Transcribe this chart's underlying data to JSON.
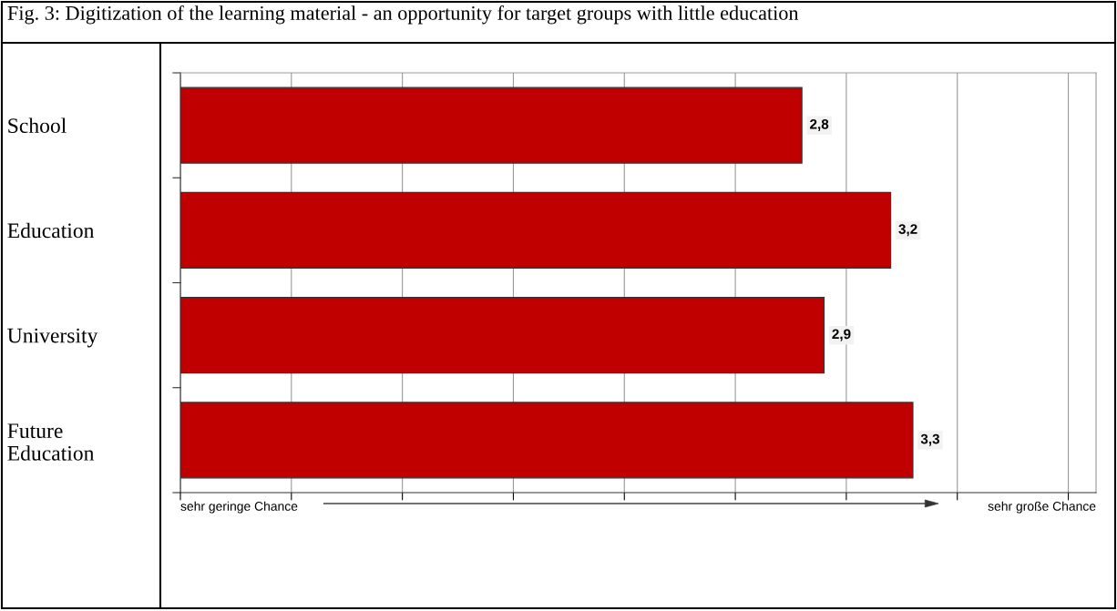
{
  "chart_data": {
    "type": "bar",
    "orientation": "horizontal",
    "title": "Fig. 3: Digitization of the learning material - an opportunity for target groups with little education",
    "categories": [
      "School",
      "Education",
      "University",
      "Future\nEducation"
    ],
    "values": [
      2.8,
      3.2,
      2.9,
      3.3
    ],
    "value_labels": [
      "2,8",
      "3,2",
      "2,9",
      "3,3"
    ],
    "color": "#c00000",
    "tick_labels": "y",
    "grid": "x",
    "annotations": [
      "sehr geringe Chance",
      "sehr große Chance"
    ]
  }
}
